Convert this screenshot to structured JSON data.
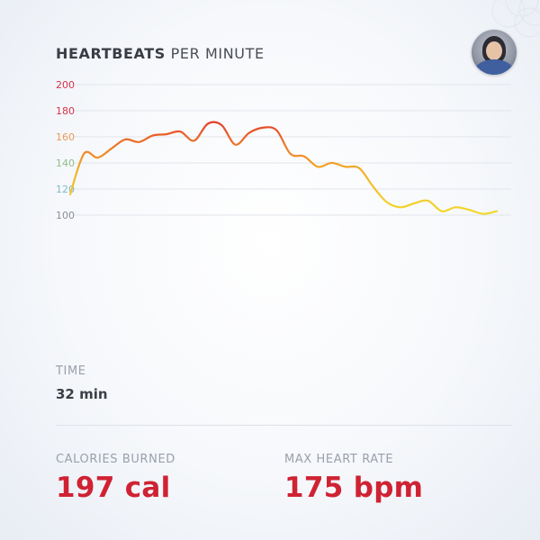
{
  "header": {
    "title_bold": "HEARTBEATS",
    "title_rest": " PER MINUTE"
  },
  "colors": {
    "accent_red": "#cf2233",
    "line_low": "#f0d12a",
    "line_high": "#e63a2a"
  },
  "chart_data": {
    "type": "line",
    "title": "HEARTBEATS PER MINUTE",
    "ylim": [
      100,
      200
    ],
    "yticks": [
      "200",
      "180",
      "160",
      "140",
      "120",
      "100"
    ],
    "grid": true,
    "series": [
      {
        "values": [
          116,
          147,
          144,
          151,
          158,
          156,
          161,
          162,
          164,
          157,
          170,
          169,
          154,
          163,
          167,
          165,
          147,
          145,
          137,
          140,
          137,
          136,
          122,
          110,
          106,
          109,
          111,
          103,
          106,
          104,
          101,
          103
        ]
      }
    ]
  },
  "stats": {
    "time_label": "TIME",
    "time_value": "32 min",
    "calories_label": "CALORIES BURNED",
    "calories_value": "197 cal",
    "max_hr_label": "MAX HEART RATE",
    "max_hr_value": "175 bpm"
  }
}
